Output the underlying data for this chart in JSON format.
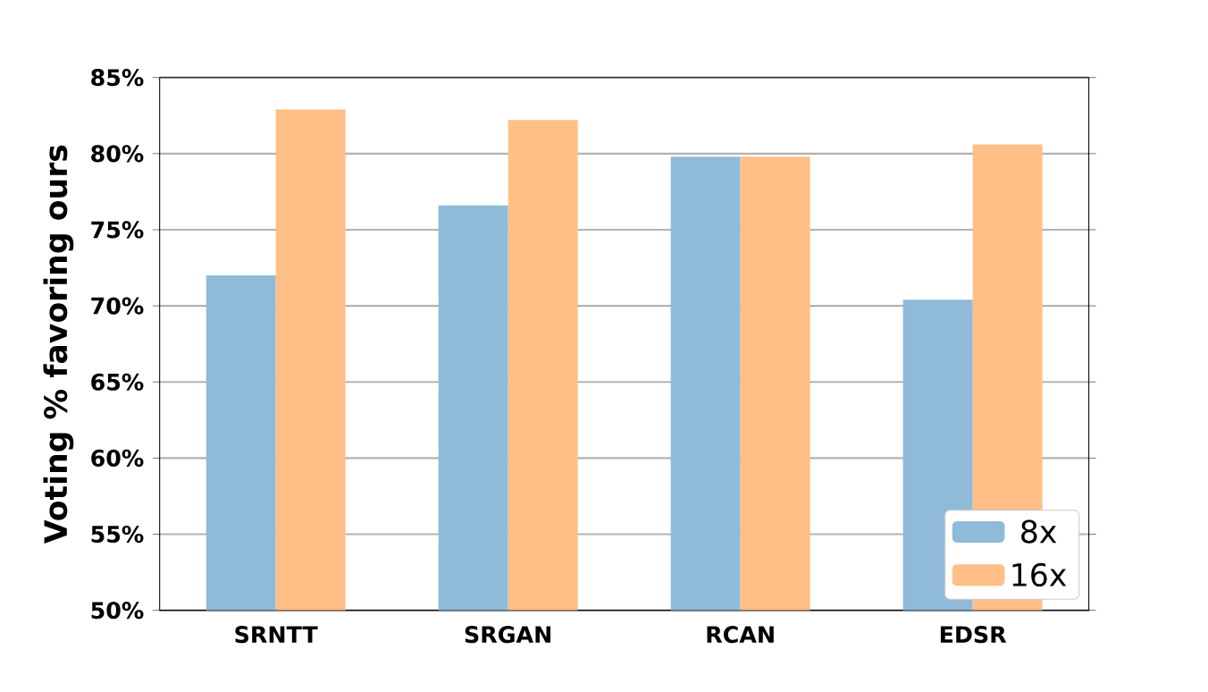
{
  "chart_data": {
    "type": "bar",
    "ylabel": "Voting % favoring ours",
    "categories": [
      "SRNTT",
      "SRGAN",
      "RCAN",
      "EDSR"
    ],
    "series": [
      {
        "name": "8x",
        "color": "#8fbad9",
        "values": [
          72.0,
          76.6,
          79.8,
          70.4
        ]
      },
      {
        "name": "16x",
        "color": "#ffbf86",
        "values": [
          82.9,
          82.2,
          79.8,
          80.6
        ]
      }
    ],
    "ylim": [
      50,
      85
    ],
    "yticks": [
      {
        "value": 50,
        "label": "50%"
      },
      {
        "value": 55,
        "label": "55%"
      },
      {
        "value": 60,
        "label": "60%"
      },
      {
        "value": 65,
        "label": "65%"
      },
      {
        "value": 70,
        "label": "70%"
      },
      {
        "value": 75,
        "label": "75%"
      },
      {
        "value": 80,
        "label": "80%"
      },
      {
        "value": 85,
        "label": "85%"
      }
    ],
    "grid": "y",
    "legend": "bottom right"
  }
}
